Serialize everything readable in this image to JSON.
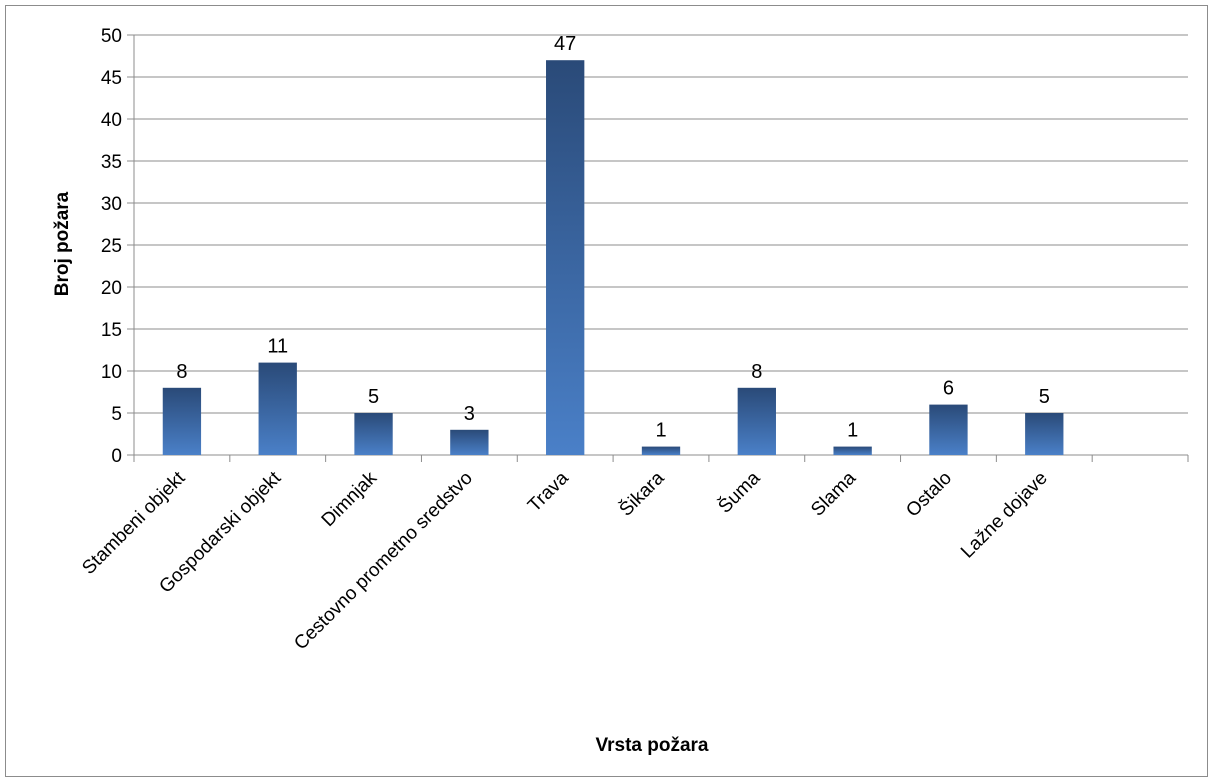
{
  "chart_data": {
    "type": "bar",
    "title": "",
    "xlabel": "Vrsta požara",
    "ylabel": "Broj požara",
    "categories": [
      "Stambeni objekt",
      "Gospodarski objekt",
      "Dimnjak",
      "Cestovno prometno sredstvo",
      "Trava",
      "Šikara",
      "Šuma",
      "Slama",
      "Ostalo",
      "Lažne dojave"
    ],
    "values": [
      8,
      11,
      5,
      3,
      47,
      1,
      8,
      1,
      6,
      5
    ],
    "ylim": [
      0,
      50
    ],
    "yticks": [
      0,
      5,
      10,
      15,
      20,
      25,
      30,
      35,
      40,
      45,
      50
    ],
    "slots": 11,
    "grid": true,
    "legend": "none",
    "data_labels": true,
    "colors": {
      "bar_top": "#2a4a78",
      "bar_bottom": "#4a80c8",
      "grid": "#8c8c8c",
      "axis": "#8c8c8c",
      "border": "#8c8c8c"
    }
  }
}
